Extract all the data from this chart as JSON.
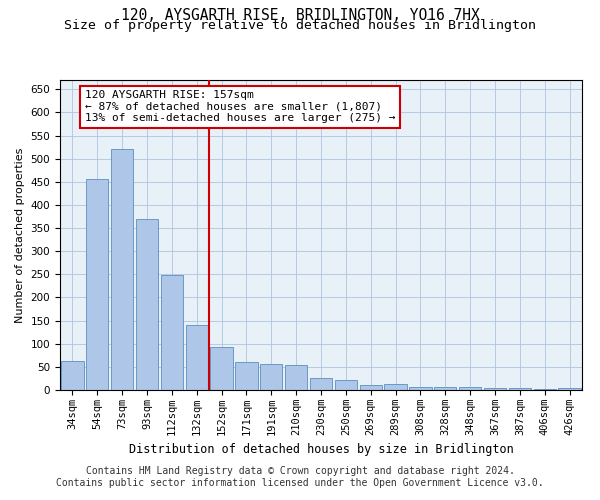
{
  "title": "120, AYSGARTH RISE, BRIDLINGTON, YO16 7HX",
  "subtitle": "Size of property relative to detached houses in Bridlington",
  "xlabel": "Distribution of detached houses by size in Bridlington",
  "ylabel": "Number of detached properties",
  "categories": [
    "34sqm",
    "54sqm",
    "73sqm",
    "93sqm",
    "112sqm",
    "132sqm",
    "152sqm",
    "171sqm",
    "191sqm",
    "210sqm",
    "230sqm",
    "250sqm",
    "269sqm",
    "289sqm",
    "308sqm",
    "328sqm",
    "348sqm",
    "367sqm",
    "387sqm",
    "406sqm",
    "426sqm"
  ],
  "values": [
    62,
    455,
    520,
    370,
    248,
    140,
    92,
    60,
    57,
    55,
    25,
    22,
    10,
    12,
    7,
    7,
    6,
    5,
    4,
    3,
    4
  ],
  "bar_color": "#aec6e8",
  "bar_edge_color": "#5a8fc0",
  "vline_index": 6,
  "vline_color": "#cc0000",
  "annotation_text": "120 AYSGARTH RISE: 157sqm\n← 87% of detached houses are smaller (1,807)\n13% of semi-detached houses are larger (275) →",
  "annotation_box_color": "#cc0000",
  "ylim": [
    0,
    670
  ],
  "yticks": [
    0,
    50,
    100,
    150,
    200,
    250,
    300,
    350,
    400,
    450,
    500,
    550,
    600,
    650
  ],
  "grid_color": "#b0c4de",
  "background_color": "#e8f0f8",
  "footer_line1": "Contains HM Land Registry data © Crown copyright and database right 2024.",
  "footer_line2": "Contains public sector information licensed under the Open Government Licence v3.0.",
  "title_fontsize": 10.5,
  "subtitle_fontsize": 9.5,
  "xlabel_fontsize": 8.5,
  "ylabel_fontsize": 8,
  "tick_fontsize": 7.5,
  "annotation_fontsize": 8,
  "footer_fontsize": 7
}
